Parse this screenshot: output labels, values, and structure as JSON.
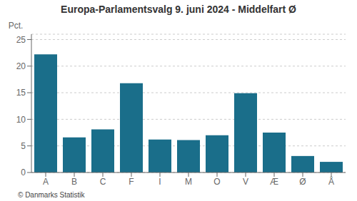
{
  "chart_data": {
    "type": "bar",
    "title": "Europa-Parlamentsvalg 9. juni 2024 - Middelfart Ø",
    "categories": [
      "A",
      "B",
      "C",
      "F",
      "I",
      "M",
      "O",
      "V",
      "Æ",
      "Ø",
      "Å"
    ],
    "values": [
      22.2,
      6.6,
      8.1,
      16.8,
      6.2,
      6.1,
      7.0,
      14.9,
      7.5,
      3.1,
      2.0
    ],
    "color": "#1a6e8a",
    "ylabel": "Pct.",
    "ylim": [
      0,
      26
    ],
    "yticks": [
      0,
      5,
      10,
      15,
      20,
      25
    ],
    "grid": true,
    "annotations": [
      "© Danmarks Statistik"
    ]
  }
}
